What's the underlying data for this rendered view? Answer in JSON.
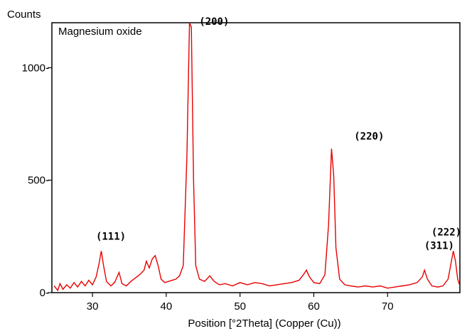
{
  "chart_data": {
    "type": "line",
    "title": "",
    "xlabel": "Position [°2Theta] (Copper (Cu))",
    "ylabel": "Counts",
    "xlim": [
      24.5,
      79.8
    ],
    "ylim": [
      0,
      1200
    ],
    "grid": false,
    "x_ticks": [
      "30",
      "40",
      "50",
      "60",
      "70"
    ],
    "y_ticks": [
      "0",
      "500",
      "1000"
    ],
    "legend": "top-left",
    "line_color": "#e80000",
    "series": [
      {
        "name": "Magnesium oxide",
        "points": [
          [
            24.8,
            30
          ],
          [
            25.3,
            10
          ],
          [
            25.6,
            40
          ],
          [
            26.0,
            15
          ],
          [
            26.5,
            35
          ],
          [
            27.0,
            20
          ],
          [
            27.5,
            45
          ],
          [
            28.0,
            25
          ],
          [
            28.5,
            50
          ],
          [
            29.0,
            30
          ],
          [
            29.5,
            55
          ],
          [
            30.0,
            35
          ],
          [
            30.5,
            70
          ],
          [
            30.9,
            130
          ],
          [
            31.2,
            185
          ],
          [
            31.5,
            120
          ],
          [
            31.9,
            50
          ],
          [
            32.5,
            30
          ],
          [
            33.0,
            45
          ],
          [
            33.6,
            90
          ],
          [
            34.0,
            40
          ],
          [
            34.6,
            30
          ],
          [
            35.2,
            50
          ],
          [
            35.8,
            65
          ],
          [
            36.4,
            80
          ],
          [
            37.0,
            100
          ],
          [
            37.3,
            140
          ],
          [
            37.7,
            110
          ],
          [
            38.1,
            150
          ],
          [
            38.5,
            165
          ],
          [
            38.9,
            120
          ],
          [
            39.3,
            60
          ],
          [
            39.8,
            45
          ],
          [
            40.3,
            50
          ],
          [
            40.8,
            55
          ],
          [
            41.3,
            60
          ],
          [
            41.8,
            75
          ],
          [
            42.3,
            120
          ],
          [
            42.8,
            600
          ],
          [
            43.15,
            1200
          ],
          [
            43.4,
            1180
          ],
          [
            43.7,
            500
          ],
          [
            44.0,
            120
          ],
          [
            44.5,
            60
          ],
          [
            45.2,
            50
          ],
          [
            45.9,
            75
          ],
          [
            46.5,
            50
          ],
          [
            47.2,
            35
          ],
          [
            48.0,
            40
          ],
          [
            49.0,
            30
          ],
          [
            50.0,
            45
          ],
          [
            51.0,
            35
          ],
          [
            52.0,
            45
          ],
          [
            53.0,
            40
          ],
          [
            54.0,
            30
          ],
          [
            55.0,
            35
          ],
          [
            56.0,
            40
          ],
          [
            57.0,
            45
          ],
          [
            58.0,
            55
          ],
          [
            58.6,
            80
          ],
          [
            59.0,
            100
          ],
          [
            59.4,
            70
          ],
          [
            60.0,
            45
          ],
          [
            60.8,
            40
          ],
          [
            61.5,
            80
          ],
          [
            62.0,
            300
          ],
          [
            62.4,
            640
          ],
          [
            62.7,
            520
          ],
          [
            63.0,
            200
          ],
          [
            63.5,
            60
          ],
          [
            64.2,
            35
          ],
          [
            65.0,
            30
          ],
          [
            66.0,
            25
          ],
          [
            67.0,
            30
          ],
          [
            68.0,
            25
          ],
          [
            69.0,
            30
          ],
          [
            70.0,
            20
          ],
          [
            71.0,
            25
          ],
          [
            72.0,
            30
          ],
          [
            73.0,
            35
          ],
          [
            74.0,
            45
          ],
          [
            74.7,
            70
          ],
          [
            75.0,
            100
          ],
          [
            75.4,
            60
          ],
          [
            76.0,
            30
          ],
          [
            76.8,
            25
          ],
          [
            77.5,
            30
          ],
          [
            78.2,
            60
          ],
          [
            78.6,
            130
          ],
          [
            78.9,
            185
          ],
          [
            79.2,
            140
          ],
          [
            79.5,
            60
          ],
          [
            79.8,
            30
          ]
        ]
      }
    ],
    "annotations": [
      {
        "label": "(111)",
        "x": 32.5,
        "y": 235
      },
      {
        "label": "(200)",
        "x": 46.5,
        "y": 1190
      },
      {
        "label": "(220)",
        "x": 67.5,
        "y": 680
      },
      {
        "label": "(311)",
        "x": 77.0,
        "y": 195
      },
      {
        "label": "(222)",
        "x": 79.8,
        "y": 255
      }
    ]
  }
}
